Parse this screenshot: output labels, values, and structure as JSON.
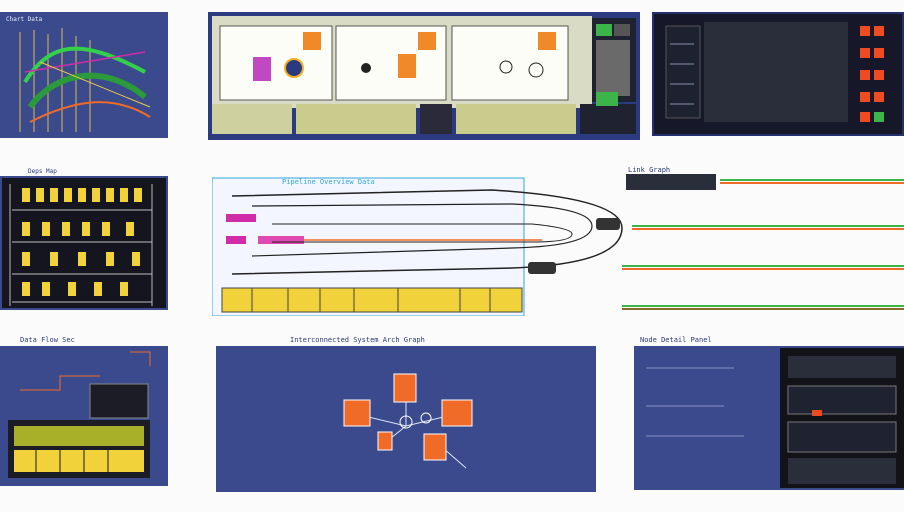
{
  "colors": {
    "navy": "#3a4a8c",
    "dark": "#16182a",
    "orange": "#f06a28",
    "yellow": "#f2d23a",
    "magenta": "#d02ca8",
    "green": "#3cb44a",
    "cyan": "#2fa8d8"
  },
  "thumbs": {
    "top_left": {
      "title": "Chart Data"
    },
    "mid_left": {
      "title": "Deps Map"
    },
    "bottom_left": {
      "title": "Data Flow Sec"
    },
    "center_top": {
      "title": "Pipeline Overview Data"
    },
    "center_bottom": {
      "title": "Interconnected System Arch Graph"
    },
    "right_mid": {
      "title": "Link Graph"
    },
    "bottom_right": {
      "title": "Node Detail Panel"
    }
  },
  "icons": [
    "chart-icon",
    "pipeline-icon",
    "graph-icon",
    "panel-icon"
  ]
}
